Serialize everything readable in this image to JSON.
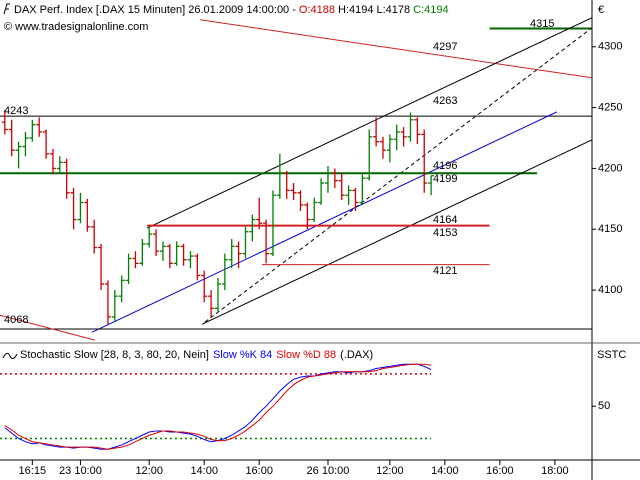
{
  "header": {
    "title": "DAX Perf. Index [.DAX  15 Minuten] 26.01.2009 14:00:00 -",
    "open": "O:4188",
    "high": "H:4194",
    "low": "L:4178",
    "close": "C:4194",
    "copyright": "© www.tradesignalonline.com",
    "currency": "€"
  },
  "chart_data": [
    {
      "type": "ohlc",
      "up_color": "#008000",
      "down_color": "#cc0000",
      "ohlc": [
        [
          4238,
          4248,
          4228,
          4232
        ],
        [
          4232,
          4240,
          4210,
          4215
        ],
        [
          4215,
          4222,
          4200,
          4218
        ],
        [
          4218,
          4230,
          4210,
          4225
        ],
        [
          4225,
          4240,
          4222,
          4236
        ],
        [
          4236,
          4242,
          4226,
          4230
        ],
        [
          4230,
          4232,
          4208,
          4212
        ],
        [
          4212,
          4216,
          4195,
          4200
        ],
        [
          4200,
          4210,
          4196,
          4205
        ],
        [
          4205,
          4208,
          4175,
          4180
        ],
        [
          4180,
          4184,
          4150,
          4158
        ],
        [
          4158,
          4180,
          4155,
          4172
        ],
        [
          4172,
          4175,
          4148,
          4152
        ],
        [
          4152,
          4158,
          4130,
          4135
        ],
        [
          4135,
          4138,
          4100,
          4105
        ],
        [
          4105,
          4108,
          4072,
          4078
        ],
        [
          4078,
          4100,
          4075,
          4095
        ],
        [
          4095,
          4112,
          4090,
          4108
        ],
        [
          4108,
          4130,
          4105,
          4126
        ],
        [
          4126,
          4132,
          4118,
          4122
        ],
        [
          4122,
          4142,
          4120,
          4138
        ],
        [
          4138,
          4152,
          4135,
          4146
        ],
        [
          4146,
          4150,
          4128,
          4132
        ],
        [
          4132,
          4140,
          4124,
          4136
        ],
        [
          4136,
          4138,
          4118,
          4122
        ],
        [
          4122,
          4140,
          4120,
          4136
        ],
        [
          4136,
          4138,
          4120,
          4125
        ],
        [
          4125,
          4132,
          4118,
          4128
        ],
        [
          4128,
          4130,
          4108,
          4112
        ],
        [
          4112,
          4116,
          4090,
          4095
        ],
        [
          4095,
          4100,
          4078,
          4085
        ],
        [
          4085,
          4110,
          4082,
          4105
        ],
        [
          4105,
          4130,
          4100,
          4125
        ],
        [
          4125,
          4142,
          4118,
          4136
        ],
        [
          4136,
          4140,
          4118,
          4130
        ],
        [
          4130,
          4152,
          4126,
          4148
        ],
        [
          4148,
          4162,
          4140,
          4158
        ],
        [
          4158,
          4176,
          4150,
          4155
        ],
        [
          4155,
          4158,
          4122,
          4130
        ],
        [
          4130,
          4182,
          4128,
          4178
        ],
        [
          4178,
          4212,
          4175,
          4196
        ],
        [
          4196,
          4198,
          4175,
          4182
        ],
        [
          4182,
          4188,
          4174,
          4180
        ],
        [
          4180,
          4182,
          4165,
          4170
        ],
        [
          4170,
          4172,
          4150,
          4158
        ],
        [
          4158,
          4176,
          4156,
          4172
        ],
        [
          4172,
          4192,
          4170,
          4188
        ],
        [
          4188,
          4202,
          4180,
          4196
        ],
        [
          4196,
          4200,
          4184,
          4190
        ],
        [
          4190,
          4196,
          4174,
          4178
        ],
        [
          4178,
          4186,
          4170,
          4182
        ],
        [
          4182,
          4184,
          4165,
          4172
        ],
        [
          4172,
          4196,
          4170,
          4192
        ],
        [
          4192,
          4232,
          4190,
          4226
        ],
        [
          4226,
          4242,
          4218,
          4222
        ],
        [
          4222,
          4226,
          4208,
          4215
        ],
        [
          4215,
          4228,
          4205,
          4224
        ],
        [
          4224,
          4236,
          4215,
          4230
        ],
        [
          4230,
          4234,
          4218,
          4226
        ],
        [
          4226,
          4246,
          4222,
          4240
        ],
        [
          4240,
          4242,
          4220,
          4228
        ],
        [
          4228,
          4232,
          4180,
          4188
        ],
        [
          4188,
          4194,
          4178,
          4194
        ]
      ],
      "xlim": [
        -0.7,
        85.4
      ],
      "xticks": [
        {
          "value": 4,
          "label": "16:15"
        },
        {
          "value": 11,
          "label": "23 10:00"
        },
        {
          "value": 21,
          "label": "12:00"
        },
        {
          "value": 29,
          "label": "14:00"
        },
        {
          "value": 37,
          "label": "16:00"
        },
        {
          "value": 47,
          "label": "26 10:00"
        },
        {
          "value": 56,
          "label": "12:00"
        },
        {
          "value": 64,
          "label": "14:00"
        },
        {
          "value": 72,
          "label": "16:00"
        },
        {
          "value": 80,
          "label": "18:00"
        }
      ],
      "ylim": [
        4059,
        4322
      ],
      "yticks": [
        4100,
        4150,
        4200,
        4250,
        4300
      ],
      "drawings": [
        {
          "points": [
            [
              70.5,
              4315
            ],
            [
              85.4,
              4315
            ]
          ],
          "color": "#006400",
          "width": 2,
          "label": 4315
        },
        {
          "points": [
            [
              28.4,
              4322.2
            ],
            [
              85.4,
              4274.5
            ]
          ],
          "color": "#d02020",
          "width": 1,
          "label": 4297
        },
        {
          "points": [
            [
              20.7,
              4151
            ],
            [
              85.4,
              4323.9
            ]
          ],
          "color": "#000000",
          "width": 1,
          "label": 4263
        },
        {
          "points": [
            [
              -0.7,
              4243
            ],
            [
              85.4,
              4243
            ]
          ],
          "color": "#000000",
          "width": 1,
          "label": 4243
        },
        {
          "points": [
            [
              12.7,
              4065.4
            ],
            [
              80.3,
              4246.5
            ]
          ],
          "color": "#0000dd",
          "width": 1,
          "label": 4199
        },
        {
          "points": [
            [
              29.1,
              4073.7
            ],
            [
              85.4,
              4315.6
            ]
          ],
          "color": "#000000",
          "width": 1,
          "dash": true
        },
        {
          "points": [
            [
              -0.7,
              4196
            ],
            [
              77.4,
              4196
            ]
          ],
          "color": "#006400",
          "width": 2,
          "label": 4196
        },
        {
          "points": [
            [
              28.7,
              4072
            ],
            [
              85.4,
              4223.5
            ]
          ],
          "color": "#000000",
          "width": 1,
          "label": 4164
        },
        {
          "points": [
            [
              20.7,
              4153
            ],
            [
              70.5,
              4153
            ]
          ],
          "color": "#d02020",
          "width": 2,
          "label": 4153
        },
        {
          "points": [
            [
              37.4,
              4121
            ],
            [
              70.5,
              4121
            ]
          ],
          "color": "#d02020",
          "width": 1,
          "label": 4121
        },
        {
          "points": [
            [
              -0.7,
              4068
            ],
            [
              85.4,
              4068
            ]
          ],
          "color": "#000000",
          "width": 1,
          "label": 4068
        },
        {
          "points": [
            [
              -0.7,
              4079.4
            ],
            [
              13.1,
              4058.9
            ]
          ],
          "color": "#d02020",
          "width": 1
        }
      ]
    },
    {
      "type": "line",
      "title": "Stochastic Slow [28, 8, 3, 80, 20, Nein]",
      "subtitle": "(.DAX)",
      "axis_label": "SSTC",
      "ylim": [
        0,
        105
      ],
      "yticks": [
        50
      ],
      "levels": [
        {
          "value": 80,
          "color": "#d00000"
        },
        {
          "value": 20,
          "color": "#008000"
        }
      ],
      "series": [
        {
          "name": "Slow %K",
          "color": "#0000ff",
          "values": [
            30,
            25,
            20,
            17,
            15,
            16,
            14,
            13,
            12,
            12,
            11,
            12,
            12,
            11,
            10,
            10,
            12,
            14,
            17,
            20,
            23,
            26,
            27,
            27,
            26,
            26,
            25,
            24,
            22,
            19,
            17,
            18,
            20,
            23,
            27,
            31,
            37,
            44,
            50,
            57,
            64,
            70,
            75,
            77,
            78,
            78,
            80,
            81,
            82,
            82,
            81,
            82,
            82,
            83,
            85,
            86,
            87,
            88,
            89,
            89,
            89,
            87,
            84
          ]
        },
        {
          "name": "Slow %D",
          "color": "#e00000",
          "values": [
            32,
            28,
            23,
            20,
            17,
            16,
            15,
            14,
            13,
            12,
            12,
            12,
            12,
            12,
            11,
            10,
            11,
            12,
            14,
            17,
            20,
            23,
            25,
            27,
            27,
            26,
            26,
            25,
            24,
            22,
            19,
            18,
            18,
            20,
            23,
            27,
            32,
            37,
            44,
            50,
            57,
            64,
            70,
            74,
            77,
            78,
            79,
            80,
            81,
            82,
            82,
            82,
            82,
            82,
            83,
            85,
            86,
            87,
            88,
            89,
            89,
            89,
            88
          ]
        }
      ]
    }
  ]
}
